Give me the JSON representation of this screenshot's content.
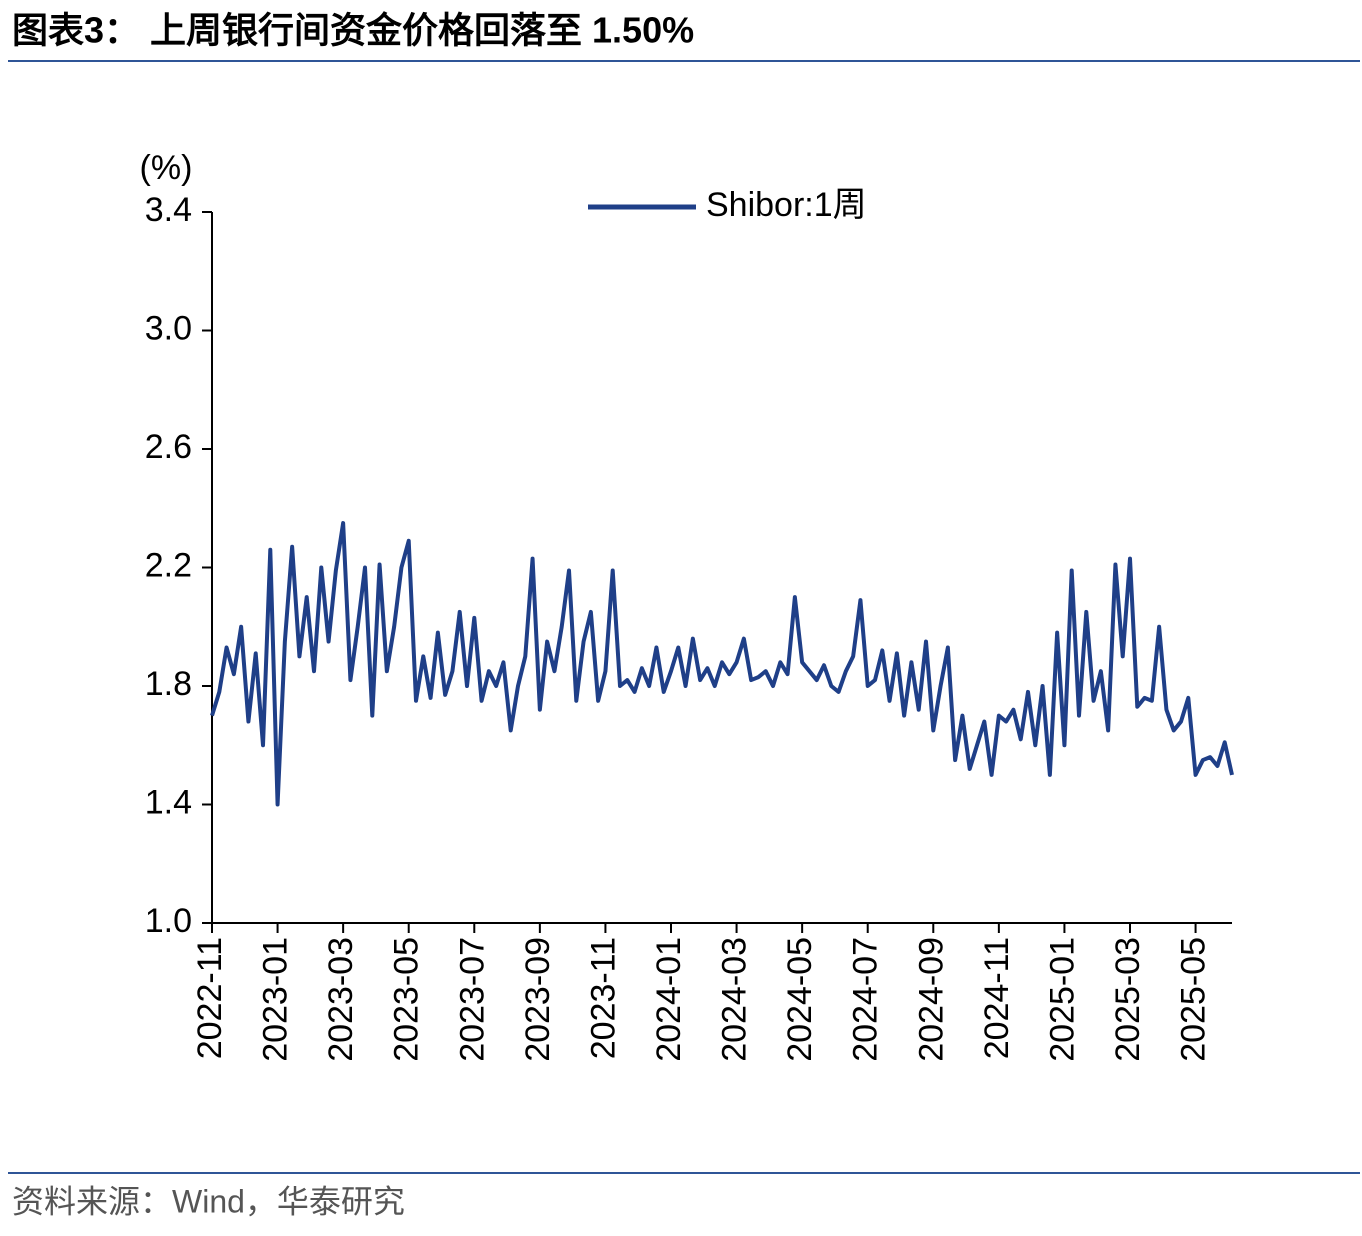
{
  "chart_data": {
    "type": "line",
    "title": "图表3： 上周银行间资金价格回落至 1.50%",
    "y_label": "(%)",
    "source": "资料来源：Wind，华泰研究",
    "categories": [
      "2022-11",
      null,
      null,
      null,
      null,
      null,
      null,
      null,
      null,
      "2023-01",
      null,
      null,
      null,
      null,
      null,
      null,
      null,
      null,
      "2023-03",
      null,
      null,
      null,
      null,
      null,
      null,
      null,
      null,
      "2023-05",
      null,
      null,
      null,
      null,
      null,
      null,
      null,
      null,
      "2023-07",
      null,
      null,
      null,
      null,
      null,
      null,
      null,
      null,
      "2023-09",
      null,
      null,
      null,
      null,
      null,
      null,
      null,
      null,
      "2023-11",
      null,
      null,
      null,
      null,
      null,
      null,
      null,
      null,
      "2024-01",
      null,
      null,
      null,
      null,
      null,
      null,
      null,
      null,
      "2024-03",
      null,
      null,
      null,
      null,
      null,
      null,
      null,
      null,
      "2024-05",
      null,
      null,
      null,
      null,
      null,
      null,
      null,
      null,
      "2024-07",
      null,
      null,
      null,
      null,
      null,
      null,
      null,
      null,
      "2024-09",
      null,
      null,
      null,
      null,
      null,
      null,
      null,
      null,
      "2024-11",
      null,
      null,
      null,
      null,
      null,
      null,
      null,
      null,
      "2025-01",
      null,
      null,
      null,
      null,
      null,
      null,
      null,
      null,
      "2025-03",
      null,
      null,
      null,
      null,
      null,
      null,
      null,
      null,
      "2025-05",
      null,
      null,
      null,
      null,
      null
    ],
    "series": [
      {
        "name": "Shibor:1周",
        "color": "#1f3f88",
        "values": [
          1.7,
          1.78,
          1.93,
          1.84,
          2.0,
          1.68,
          1.91,
          1.6,
          2.26,
          1.4,
          1.95,
          2.27,
          1.9,
          2.1,
          1.85,
          2.2,
          1.95,
          2.19,
          2.35,
          1.82,
          2.0,
          2.2,
          1.7,
          2.21,
          1.85,
          2.0,
          2.2,
          2.29,
          1.75,
          1.9,
          1.76,
          1.98,
          1.77,
          1.85,
          2.05,
          1.8,
          2.03,
          1.75,
          1.85,
          1.8,
          1.88,
          1.65,
          1.8,
          1.9,
          2.23,
          1.72,
          1.95,
          1.85,
          2.0,
          2.19,
          1.75,
          1.95,
          2.05,
          1.75,
          1.85,
          2.19,
          1.8,
          1.82,
          1.78,
          1.86,
          1.8,
          1.93,
          1.78,
          1.85,
          1.93,
          1.8,
          1.96,
          1.82,
          1.86,
          1.8,
          1.88,
          1.84,
          1.88,
          1.96,
          1.82,
          1.83,
          1.85,
          1.8,
          1.88,
          1.84,
          2.1,
          1.88,
          1.85,
          1.82,
          1.87,
          1.8,
          1.78,
          1.85,
          1.9,
          2.09,
          1.8,
          1.82,
          1.92,
          1.75,
          1.91,
          1.7,
          1.88,
          1.72,
          1.95,
          1.65,
          1.8,
          1.93,
          1.55,
          1.7,
          1.52,
          1.6,
          1.68,
          1.5,
          1.7,
          1.68,
          1.72,
          1.62,
          1.78,
          1.6,
          1.8,
          1.5,
          1.98,
          1.6,
          2.19,
          1.7,
          2.05,
          1.75,
          1.85,
          1.65,
          2.21,
          1.9,
          2.23,
          1.73,
          1.76,
          1.75,
          2.0,
          1.72,
          1.65,
          1.68,
          1.76,
          1.5,
          1.55,
          1.56,
          1.53,
          1.61,
          1.5
        ]
      }
    ],
    "ylim": [
      1.0,
      3.4
    ],
    "yticks": [
      {
        "value": 1,
        "label": "1.0"
      },
      1.4,
      1.8,
      2.2,
      2.6,
      {
        "value": 3,
        "label": "3.0"
      },
      3.4
    ]
  }
}
